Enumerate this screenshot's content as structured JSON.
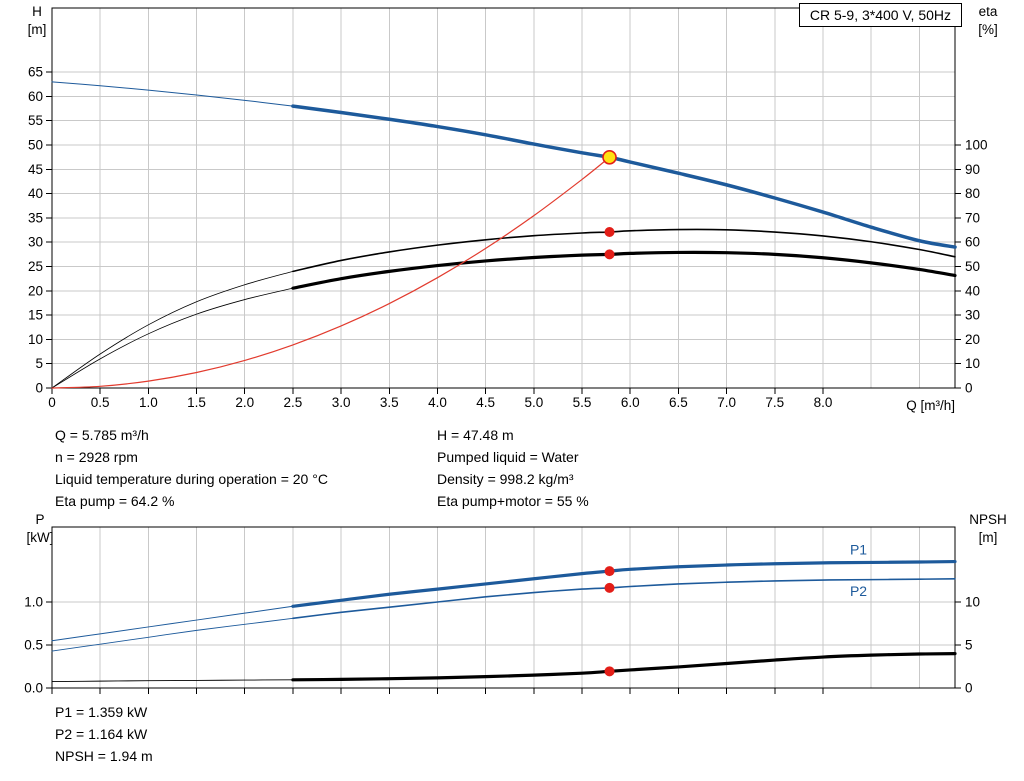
{
  "header": {
    "title": "CR 5-9, 3*400 V, 50Hz"
  },
  "axis_headers": {
    "h_symbol": "H",
    "h_unit": "[m]",
    "eta_symbol": "eta",
    "eta_unit": "[%]",
    "q_label": "Q [m³/h]",
    "p_symbol": "P",
    "p_unit": "[kW]",
    "npsh_symbol": "NPSH",
    "npsh_unit": "[m]"
  },
  "annotations": {
    "top_left": [
      "Q = 5.785 m³/h",
      "n = 2928 rpm",
      "Liquid temperature during operation = 20 °C",
      "Eta pump = 64.2 %"
    ],
    "top_right": [
      "H = 47.48 m",
      "Pumped liquid = Water",
      "Density = 998.2 kg/m³",
      "Eta pump+motor = 55 %"
    ],
    "bottom": [
      "P1 = 1.359 kW",
      "P2 = 1.164 kW",
      "NPSH = 1.94 m"
    ]
  },
  "colors": {
    "curve_blue": "#1d5a9b",
    "curve_black": "#000000",
    "system_red": "#e23b2e",
    "marker_red": "#e31e18",
    "duty_yellow": "#ffe212"
  },
  "operating_point": {
    "q": 5.785,
    "h": 47.48,
    "eta_pump": 64.2,
    "eta_pump_motor": 55,
    "p1": 1.359,
    "p2": 1.164,
    "npsh": 1.94
  },
  "chart_data": [
    {
      "type": "line",
      "name": "performance",
      "title": "CR 5-9, 3*400 V, 50Hz",
      "x_axis": {
        "label": "Q [m³/h]",
        "range": [
          0,
          9.37
        ],
        "ticks": [
          0,
          0.5,
          1,
          1.5,
          2,
          2.5,
          3,
          3.5,
          4,
          4.5,
          5,
          5.5,
          6,
          6.5,
          7,
          7.5,
          8
        ],
        "tick_labels": [
          "0",
          "0.5",
          "1.0",
          "1.5",
          "2.0",
          "2.5",
          "3.0",
          "3.5",
          "4.0",
          "4.5",
          "5.0",
          "5.5",
          "6.0",
          "6.5",
          "7.0",
          "7.5",
          "8.0"
        ],
        "grid_ticks": [
          0.5,
          1,
          1.5,
          2,
          2.5,
          3,
          3.5,
          4,
          4.5,
          5,
          5.5,
          6,
          6.5,
          7,
          7.5,
          8,
          8.5,
          9
        ]
      },
      "y_left": {
        "label": "H [m]",
        "range": [
          0,
          78.2
        ],
        "ticks": [
          0,
          5,
          10,
          15,
          20,
          25,
          30,
          35,
          40,
          45,
          50,
          55,
          60,
          65
        ],
        "tick_labels": [
          "0",
          "5",
          "10",
          "15",
          "20",
          "25",
          "30",
          "35",
          "40",
          "45",
          "50",
          "55",
          "60",
          "65"
        ],
        "grid_ticks": [
          5,
          10,
          15,
          20,
          25,
          30,
          35,
          40,
          45,
          50,
          55,
          60,
          65
        ]
      },
      "y_right": {
        "label": "eta [%]",
        "range": [
          0,
          156.4
        ],
        "ticks": [
          0,
          10,
          20,
          30,
          40,
          50,
          60,
          70,
          80,
          90,
          100
        ],
        "tick_labels": [
          "0",
          "10",
          "20",
          "30",
          "40",
          "50",
          "60",
          "70",
          "80",
          "90",
          "100"
        ],
        "grid_ticks": []
      },
      "series": [
        {
          "name": "head",
          "axis": "left",
          "color": "#1d5a9b",
          "width": 3.5,
          "thin_width": 1,
          "thin_until": 2.5,
          "points": [
            [
              0,
              63
            ],
            [
              0.5,
              62.2
            ],
            [
              1,
              61.3
            ],
            [
              1.5,
              60.3
            ],
            [
              2,
              59.2
            ],
            [
              2.5,
              58
            ],
            [
              3,
              56.7
            ],
            [
              3.5,
              55.3
            ],
            [
              4,
              53.8
            ],
            [
              4.5,
              52.1
            ],
            [
              5,
              50.2
            ],
            [
              5.5,
              48.4
            ],
            [
              5.785,
              47.48
            ],
            [
              6,
              46.5
            ],
            [
              6.5,
              44.2
            ],
            [
              7,
              41.8
            ],
            [
              7.5,
              39.1
            ],
            [
              8,
              36.2
            ],
            [
              8.5,
              33.1
            ],
            [
              9,
              30.3
            ],
            [
              9.37,
              29
            ]
          ]
        },
        {
          "name": "eta-pump",
          "axis": "right",
          "color": "#000000",
          "width": 1.6,
          "thin_width": 0.8,
          "thin_until": 2.5,
          "points": [
            [
              0,
              0
            ],
            [
              0.5,
              14
            ],
            [
              1,
              26
            ],
            [
              1.5,
              35.5
            ],
            [
              2,
              42.5
            ],
            [
              2.5,
              48
            ],
            [
              3,
              52.5
            ],
            [
              3.5,
              56
            ],
            [
              4,
              58.8
            ],
            [
              4.5,
              61
            ],
            [
              5,
              62.7
            ],
            [
              5.5,
              63.8
            ],
            [
              5.785,
              64.2
            ],
            [
              6,
              64.7
            ],
            [
              6.5,
              65.2
            ],
            [
              7,
              65.1
            ],
            [
              7.5,
              64.2
            ],
            [
              8,
              62.6
            ],
            [
              8.5,
              60.2
            ],
            [
              9,
              57
            ],
            [
              9.37,
              54
            ]
          ]
        },
        {
          "name": "eta-pump-motor",
          "axis": "right",
          "color": "#000000",
          "width": 3.2,
          "thin_width": 0.8,
          "thin_until": 2.5,
          "points": [
            [
              0,
              0
            ],
            [
              0.5,
              12
            ],
            [
              1,
              22.3
            ],
            [
              1.5,
              30.4
            ],
            [
              2,
              36.4
            ],
            [
              2.5,
              41.1
            ],
            [
              3,
              45
            ],
            [
              3.5,
              48
            ],
            [
              4,
              50.4
            ],
            [
              4.5,
              52.3
            ],
            [
              5,
              53.7
            ],
            [
              5.5,
              54.7
            ],
            [
              5.785,
              55
            ],
            [
              6,
              55.4
            ],
            [
              6.5,
              55.8
            ],
            [
              7,
              55.7
            ],
            [
              7.5,
              55
            ],
            [
              8,
              53.6
            ],
            [
              8.5,
              51.5
            ],
            [
              9,
              48.8
            ],
            [
              9.37,
              46.3
            ]
          ]
        },
        {
          "name": "system-curve",
          "axis": "left",
          "color": "#e23b2e",
          "width": 1.2,
          "points": [
            [
              0,
              0
            ],
            [
              0.5,
              0.35
            ],
            [
              1,
              1.42
            ],
            [
              1.5,
              3.19
            ],
            [
              2,
              5.67
            ],
            [
              2.5,
              8.87
            ],
            [
              3,
              12.77
            ],
            [
              3.5,
              17.38
            ],
            [
              4,
              22.7
            ],
            [
              4.5,
              28.73
            ],
            [
              5,
              35.47
            ],
            [
              5.5,
              42.92
            ],
            [
              5.785,
              47.48
            ]
          ]
        }
      ],
      "markers": [
        {
          "name": "eta-pump-point",
          "q": 5.785,
          "value": 64.2,
          "axis": "right",
          "kind": "dot"
        },
        {
          "name": "eta-pump-motor-point",
          "q": 5.785,
          "value": 55,
          "axis": "right",
          "kind": "dot"
        },
        {
          "name": "duty-point",
          "q": 5.785,
          "value": 47.48,
          "axis": "left",
          "kind": "duty"
        }
      ],
      "curve_labels": []
    },
    {
      "type": "line",
      "name": "power-npsh",
      "title": "",
      "x_axis": {
        "label": "",
        "range": [
          0,
          9.37
        ],
        "ticks": [
          0,
          0.5,
          1,
          1.5,
          2,
          2.5,
          3,
          3.5,
          4,
          4.5,
          5,
          5.5,
          6,
          6.5,
          7,
          7.5,
          8
        ],
        "tick_labels": null,
        "grid_ticks": [
          0.5,
          1,
          1.5,
          2,
          2.5,
          3,
          3.5,
          4,
          4.5,
          5,
          5.5,
          6,
          6.5,
          7,
          7.5,
          8,
          8.5,
          9
        ]
      },
      "y_left": {
        "label": "P [kW]",
        "range": [
          0,
          1.872
        ],
        "ticks": [
          0,
          0.5,
          1
        ],
        "tick_labels": [
          "0.0",
          "0.5",
          "1.0"
        ],
        "grid_ticks": [
          0.5,
          1
        ]
      },
      "y_right": {
        "label": "NPSH [m]",
        "range": [
          0,
          18.72
        ],
        "ticks": [
          0,
          5,
          10
        ],
        "tick_labels": [
          "0",
          "5",
          "10"
        ],
        "grid_ticks": []
      },
      "series": [
        {
          "name": "p1",
          "axis": "left",
          "color": "#1d5a9b",
          "width": 3.2,
          "thin_width": 1,
          "thin_until": 2.5,
          "points": [
            [
              0,
              0.55
            ],
            [
              0.5,
              0.63
            ],
            [
              1,
              0.71
            ],
            [
              1.5,
              0.79
            ],
            [
              2,
              0.87
            ],
            [
              2.5,
              0.95
            ],
            [
              3,
              1.02
            ],
            [
              3.5,
              1.09
            ],
            [
              4,
              1.15
            ],
            [
              4.5,
              1.21
            ],
            [
              5,
              1.27
            ],
            [
              5.5,
              1.33
            ],
            [
              5.785,
              1.359
            ],
            [
              6,
              1.38
            ],
            [
              6.5,
              1.41
            ],
            [
              7,
              1.43
            ],
            [
              7.5,
              1.445
            ],
            [
              8,
              1.455
            ],
            [
              8.5,
              1.46
            ],
            [
              9,
              1.465
            ],
            [
              9.37,
              1.47
            ]
          ]
        },
        {
          "name": "p2",
          "axis": "left",
          "color": "#1d5a9b",
          "width": 1.6,
          "thin_width": 0.9,
          "thin_until": 2.5,
          "points": [
            [
              0,
              0.43
            ],
            [
              0.5,
              0.51
            ],
            [
              1,
              0.59
            ],
            [
              1.5,
              0.67
            ],
            [
              2,
              0.74
            ],
            [
              2.5,
              0.81
            ],
            [
              3,
              0.88
            ],
            [
              3.5,
              0.94
            ],
            [
              4,
              1.0
            ],
            [
              4.5,
              1.06
            ],
            [
              5,
              1.11
            ],
            [
              5.5,
              1.15
            ],
            [
              5.785,
              1.164
            ],
            [
              6,
              1.18
            ],
            [
              6.5,
              1.21
            ],
            [
              7,
              1.23
            ],
            [
              7.5,
              1.245
            ],
            [
              8,
              1.255
            ],
            [
              8.5,
              1.26
            ],
            [
              9,
              1.265
            ],
            [
              9.37,
              1.27
            ]
          ]
        },
        {
          "name": "npsh",
          "axis": "right",
          "color": "#000000",
          "width": 3.2,
          "thin_width": 0.9,
          "thin_until": 2.5,
          "points": [
            [
              0,
              0.75
            ],
            [
              0.5,
              0.8
            ],
            [
              1,
              0.85
            ],
            [
              1.5,
              0.88
            ],
            [
              2,
              0.92
            ],
            [
              2.5,
              0.95
            ],
            [
              3,
              1.0
            ],
            [
              3.5,
              1.08
            ],
            [
              4,
              1.18
            ],
            [
              4.5,
              1.32
            ],
            [
              5,
              1.5
            ],
            [
              5.5,
              1.72
            ],
            [
              5.785,
              1.94
            ],
            [
              6,
              2.1
            ],
            [
              6.5,
              2.45
            ],
            [
              7,
              2.85
            ],
            [
              7.5,
              3.25
            ],
            [
              8,
              3.6
            ],
            [
              8.5,
              3.82
            ],
            [
              9,
              3.95
            ],
            [
              9.37,
              4.0
            ]
          ]
        }
      ],
      "markers": [
        {
          "name": "p1-point",
          "q": 5.785,
          "value": 1.359,
          "axis": "left",
          "kind": "dot"
        },
        {
          "name": "p2-point",
          "q": 5.785,
          "value": 1.164,
          "axis": "left",
          "kind": "dot"
        },
        {
          "name": "npsh-point",
          "q": 5.785,
          "value": 1.94,
          "axis": "right",
          "kind": "dot"
        }
      ],
      "curve_labels": [
        {
          "text": "P1",
          "x": 8.28,
          "y": 1.55,
          "axis": "left",
          "color": "#1d5a9b"
        },
        {
          "text": "P2",
          "x": 8.28,
          "y": 1.07,
          "axis": "left",
          "color": "#1d5a9b"
        }
      ]
    }
  ]
}
